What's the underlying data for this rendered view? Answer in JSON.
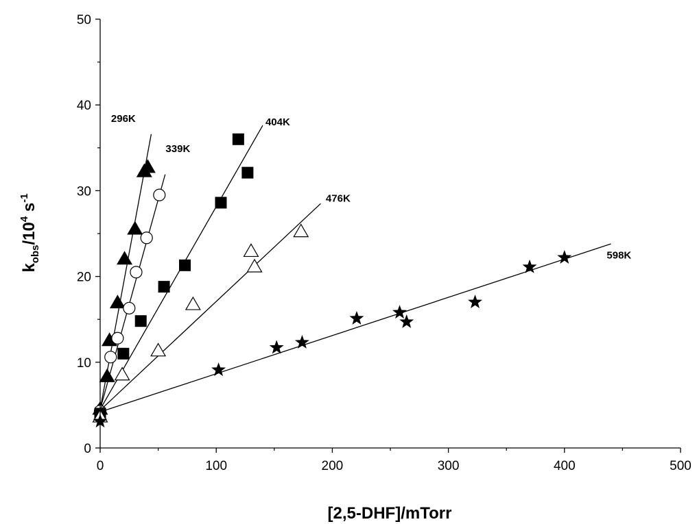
{
  "chart_data": {
    "type": "scatter",
    "title": "",
    "xlabel": "[2,5-DHF]/mTorr",
    "ylabel": {
      "main": "k",
      "sub": "obs",
      "mid": "/10",
      "sup1": "4",
      "end": " s",
      "sup2": "-1"
    },
    "xlim": [
      0,
      500
    ],
    "ylim": [
      0,
      50
    ],
    "xticks": [
      0,
      100,
      200,
      300,
      400,
      500
    ],
    "yticks": [
      0,
      10,
      20,
      30,
      40,
      50
    ],
    "xtick_labels": [
      "0",
      "100",
      "200",
      "300",
      "400",
      "500"
    ],
    "ytick_labels": [
      "0",
      "10",
      "20",
      "30",
      "40",
      "50"
    ],
    "grid": false,
    "series": [
      {
        "name": "296K",
        "marker": "filled-triangle",
        "points": [
          [
            0,
            4.5
          ],
          [
            6,
            8.3
          ],
          [
            8,
            12.5
          ],
          [
            15,
            16.9
          ],
          [
            21,
            22.0
          ],
          [
            30,
            25.5
          ],
          [
            38,
            32.2
          ],
          [
            41,
            32.7
          ]
        ],
        "fit": {
          "x": [
            0,
            44
          ],
          "y": [
            4.5,
            36.6
          ]
        }
      },
      {
        "name": "339K",
        "marker": "open-circle",
        "points": [
          [
            0,
            4.3
          ],
          [
            9,
            10.6
          ],
          [
            15,
            12.8
          ],
          [
            25,
            16.3
          ],
          [
            31,
            20.5
          ],
          [
            40,
            24.5
          ],
          [
            51,
            29.5
          ]
        ],
        "fit": {
          "x": [
            0,
            56
          ],
          "y": [
            4.5,
            31.9
          ]
        }
      },
      {
        "name": "404K",
        "marker": "filled-square",
        "points": [
          [
            0,
            4.0
          ],
          [
            20,
            11.0
          ],
          [
            35,
            14.8
          ],
          [
            55,
            18.8
          ],
          [
            73,
            21.3
          ],
          [
            104,
            28.6
          ],
          [
            119,
            36.0
          ],
          [
            127,
            32.1
          ]
        ],
        "fit": {
          "x": [
            0,
            140
          ],
          "y": [
            4.5,
            37.6
          ]
        }
      },
      {
        "name": "476K",
        "marker": "open-triangle",
        "points": [
          [
            0,
            3.6
          ],
          [
            19,
            8.5
          ],
          [
            50,
            11.3
          ],
          [
            80,
            16.7
          ],
          [
            130,
            22.9
          ],
          [
            133,
            21.1
          ],
          [
            173,
            25.2
          ]
        ],
        "fit": {
          "x": [
            0,
            190
          ],
          "y": [
            4.4,
            28.5
          ]
        }
      },
      {
        "name": "598K",
        "marker": "filled-star",
        "points": [
          [
            0,
            3.1
          ],
          [
            102,
            9.1
          ],
          [
            152,
            11.7
          ],
          [
            174,
            12.3
          ],
          [
            221,
            15.1
          ],
          [
            258,
            15.8
          ],
          [
            264,
            14.7
          ],
          [
            323,
            17.0
          ],
          [
            370,
            21.1
          ],
          [
            400,
            22.2
          ]
        ],
        "fit": {
          "x": [
            0,
            440
          ],
          "y": [
            4.2,
            23.8
          ]
        }
      }
    ],
    "annotations": [
      {
        "text": "296K",
        "x": 20,
        "y": 38
      },
      {
        "text": "339K",
        "x": 67,
        "y": 34.5
      },
      {
        "text": "404K",
        "x": 153,
        "y": 37.6
      },
      {
        "text": "476K",
        "x": 205,
        "y": 28.7
      },
      {
        "text": "598K",
        "x": 447,
        "y": 22.1
      }
    ]
  }
}
